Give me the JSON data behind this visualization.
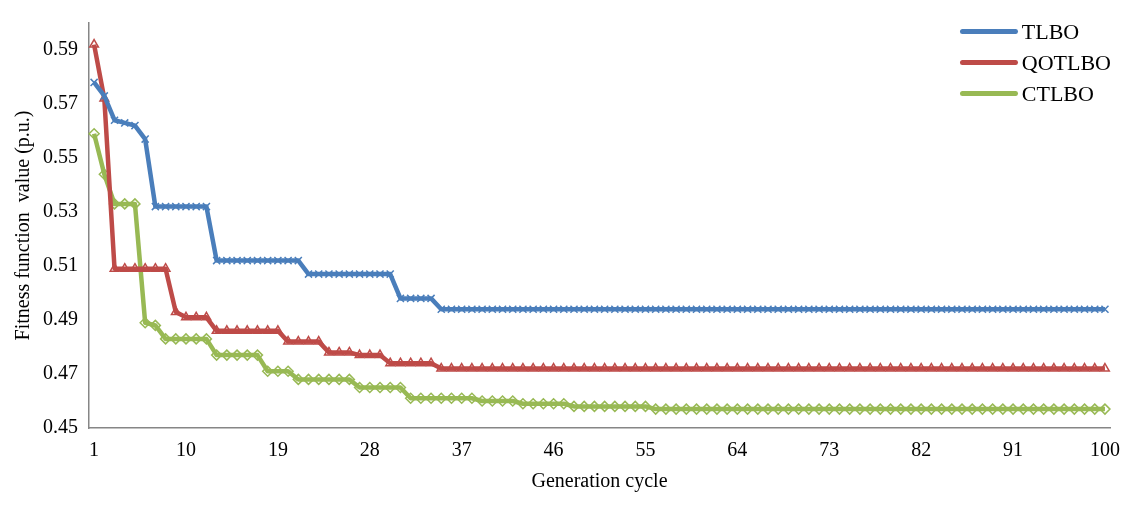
{
  "chart_data": {
    "type": "line",
    "xlabel": "Generation cycle",
    "ylabel": "Fitness function  value (p.u.)",
    "categories": [
      "1",
      null,
      null,
      null,
      null,
      null,
      null,
      null,
      null,
      "10",
      null,
      null,
      null,
      null,
      null,
      null,
      null,
      null,
      "19",
      null,
      null,
      null,
      null,
      null,
      null,
      null,
      null,
      "28",
      null,
      null,
      null,
      null,
      null,
      null,
      null,
      null,
      "37",
      null,
      null,
      null,
      null,
      null,
      null,
      null,
      null,
      "46",
      null,
      null,
      null,
      null,
      null,
      null,
      null,
      null,
      "55",
      null,
      null,
      null,
      null,
      null,
      null,
      null,
      null,
      "64",
      null,
      null,
      null,
      null,
      null,
      null,
      null,
      null,
      "73",
      null,
      null,
      null,
      null,
      null,
      null,
      null,
      null,
      "82",
      null,
      null,
      null,
      null,
      null,
      null,
      null,
      null,
      "91",
      null,
      null,
      null,
      null,
      null,
      null,
      null,
      null,
      "100"
    ],
    "ylim": [
      0.45,
      0.6
    ],
    "yticks": [
      0.45,
      0.47,
      0.49,
      0.51,
      0.53,
      0.55,
      0.57,
      0.59
    ],
    "grid": false,
    "legend": "top right",
    "line_style": "solid",
    "series": [
      {
        "name": "TLBO",
        "color": "#4a7ebb",
        "marker": "cross",
        "values": [
          0.578,
          0.573,
          0.564,
          0.563,
          0.562,
          0.557,
          0.532,
          0.532,
          0.532,
          0.532,
          0.532,
          0.532,
          0.512,
          0.512,
          0.512,
          0.512,
          0.512,
          0.512,
          0.512,
          0.512,
          0.512,
          0.507,
          0.507,
          0.507,
          0.507,
          0.507,
          0.507,
          0.507,
          0.507,
          0.507,
          0.498,
          0.498,
          0.498,
          0.498,
          0.494,
          0.494,
          0.494,
          0.494,
          0.494,
          0.494,
          0.494,
          0.494,
          0.494,
          0.494,
          0.494,
          0.494,
          0.494,
          0.494,
          0.494,
          0.494,
          0.494,
          0.494,
          0.494,
          0.494,
          0.494,
          0.494,
          0.494,
          0.494,
          0.494,
          0.494,
          0.494,
          0.494,
          0.494,
          0.494,
          0.494,
          0.494,
          0.494,
          0.494,
          0.494,
          0.494,
          0.494,
          0.494,
          0.494,
          0.494,
          0.494,
          0.494,
          0.494,
          0.494,
          0.494,
          0.494,
          0.494,
          0.494,
          0.494,
          0.494,
          0.494,
          0.494,
          0.494,
          0.494,
          0.494,
          0.494,
          0.494,
          0.494,
          0.494,
          0.494,
          0.494,
          0.494,
          0.494,
          0.494,
          0.494,
          0.494
        ]
      },
      {
        "name": "QOTLBO",
        "color": "#be4b48",
        "marker": "triangle",
        "values": [
          0.592,
          0.572,
          0.509,
          0.509,
          0.509,
          0.509,
          0.509,
          0.509,
          0.493,
          0.491,
          0.491,
          0.491,
          0.486,
          0.486,
          0.486,
          0.486,
          0.486,
          0.486,
          0.486,
          0.482,
          0.482,
          0.482,
          0.482,
          0.478,
          0.478,
          0.478,
          0.477,
          0.477,
          0.477,
          0.474,
          0.474,
          0.474,
          0.474,
          0.474,
          0.472,
          0.472,
          0.472,
          0.472,
          0.472,
          0.472,
          0.472,
          0.472,
          0.472,
          0.472,
          0.472,
          0.472,
          0.472,
          0.472,
          0.472,
          0.472,
          0.472,
          0.472,
          0.472,
          0.472,
          0.472,
          0.472,
          0.472,
          0.472,
          0.472,
          0.472,
          0.472,
          0.472,
          0.472,
          0.472,
          0.472,
          0.472,
          0.472,
          0.472,
          0.472,
          0.472,
          0.472,
          0.472,
          0.472,
          0.472,
          0.472,
          0.472,
          0.472,
          0.472,
          0.472,
          0.472,
          0.472,
          0.472,
          0.472,
          0.472,
          0.472,
          0.472,
          0.472,
          0.472,
          0.472,
          0.472,
          0.472,
          0.472,
          0.472,
          0.472,
          0.472,
          0.472,
          0.472,
          0.472,
          0.472,
          0.472
        ]
      },
      {
        "name": "CTLBO",
        "color": "#98b954",
        "marker": "diamond",
        "values": [
          0.559,
          0.544,
          0.533,
          0.533,
          0.533,
          0.489,
          0.488,
          0.483,
          0.483,
          0.483,
          0.483,
          0.483,
          0.477,
          0.477,
          0.477,
          0.477,
          0.477,
          0.471,
          0.471,
          0.471,
          0.468,
          0.468,
          0.468,
          0.468,
          0.468,
          0.468,
          0.465,
          0.465,
          0.465,
          0.465,
          0.465,
          0.461,
          0.461,
          0.461,
          0.461,
          0.461,
          0.461,
          0.461,
          0.46,
          0.46,
          0.46,
          0.46,
          0.459,
          0.459,
          0.459,
          0.459,
          0.459,
          0.458,
          0.458,
          0.458,
          0.458,
          0.458,
          0.458,
          0.458,
          0.458,
          0.457,
          0.457,
          0.457,
          0.457,
          0.457,
          0.457,
          0.457,
          0.457,
          0.457,
          0.457,
          0.457,
          0.457,
          0.457,
          0.457,
          0.457,
          0.457,
          0.457,
          0.457,
          0.457,
          0.457,
          0.457,
          0.457,
          0.457,
          0.457,
          0.457,
          0.457,
          0.457,
          0.457,
          0.457,
          0.457,
          0.457,
          0.457,
          0.457,
          0.457,
          0.457,
          0.457,
          0.457,
          0.457,
          0.457,
          0.457,
          0.457,
          0.457,
          0.457,
          0.457,
          0.457
        ]
      }
    ]
  }
}
